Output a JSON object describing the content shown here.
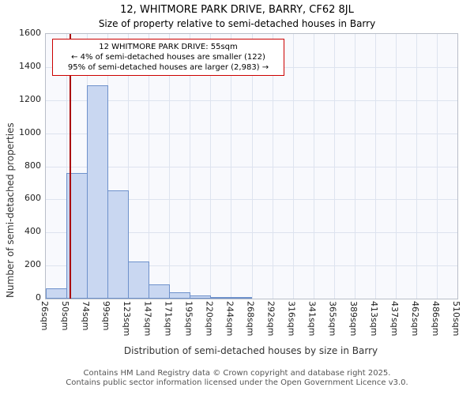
{
  "title": "12, WHITMORE PARK DRIVE, BARRY, CF62 8JL",
  "subtitle": "Size of property relative to semi-detached houses in Barry",
  "chart_data": {
    "type": "bar",
    "title": "12, WHITMORE PARK DRIVE, BARRY, CF62 8JL — Size of property relative to semi-detached houses in Barry",
    "xlabel": "Distribution of semi-detached houses by size in Barry",
    "ylabel": "Number of semi-detached properties",
    "x_tick_labels": [
      "26sqm",
      "50sqm",
      "74sqm",
      "99sqm",
      "123sqm",
      "147sqm",
      "171sqm",
      "195sqm",
      "220sqm",
      "244sqm",
      "268sqm",
      "292sqm",
      "316sqm",
      "341sqm",
      "365sqm",
      "389sqm",
      "413sqm",
      "437sqm",
      "462sqm",
      "486sqm",
      "510sqm"
    ],
    "bin_edges_sqm": [
      26,
      50,
      74,
      99,
      123,
      147,
      171,
      195,
      220,
      244,
      268,
      292,
      316,
      341,
      365,
      389,
      413,
      437,
      462,
      486,
      510
    ],
    "values": [
      60,
      760,
      1290,
      655,
      225,
      85,
      40,
      18,
      10,
      5,
      0,
      0,
      0,
      0,
      0,
      0,
      0,
      0,
      0,
      0
    ],
    "ylim": [
      0,
      1600
    ],
    "y_ticks": [
      0,
      200,
      400,
      600,
      800,
      1000,
      1200,
      1400,
      1600
    ],
    "grid": true,
    "legend": "none",
    "marker_value_sqm": 55
  },
  "annotation": {
    "line1": "12 WHITMORE PARK DRIVE: 55sqm",
    "line2": "← 4% of semi-detached houses are smaller (122)",
    "line3": "95% of semi-detached houses are larger (2,983) →"
  },
  "footer": {
    "line1": "Contains HM Land Registry data © Crown copyright and database right 2025.",
    "line2": "Contains public sector information licensed under the Open Government Licence v3.0."
  },
  "colors": {
    "bar_fill": "#c9d7f1",
    "bar_edge": "#6e91cb",
    "marker_line": "#aa0000",
    "annotation_border": "#cc0000",
    "grid": "#dde3ef"
  }
}
